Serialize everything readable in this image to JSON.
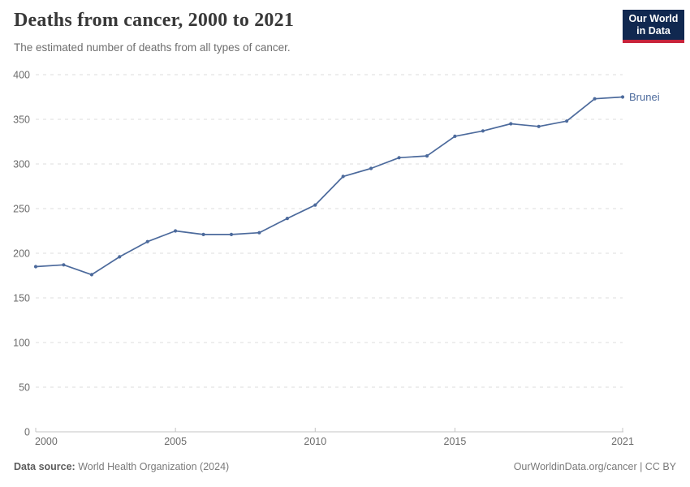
{
  "header": {
    "title": "Deaths from cancer, 2000 to 2021",
    "subtitle": "The estimated number of deaths from all types of cancer.",
    "logo": {
      "line1": "Our World",
      "line2": "in Data",
      "bg_color": "#102850",
      "accent_color": "#C8233B"
    }
  },
  "chart_data": {
    "type": "line",
    "title": "Deaths from cancer, 2000 to 2021",
    "subtitle": "The estimated number of deaths from all types of cancer.",
    "x": [
      2000,
      2001,
      2002,
      2003,
      2004,
      2005,
      2006,
      2007,
      2008,
      2009,
      2010,
      2011,
      2012,
      2013,
      2014,
      2015,
      2016,
      2017,
      2018,
      2019,
      2020,
      2021
    ],
    "series": [
      {
        "name": "Brunei",
        "color": "#4C6A9C",
        "values": [
          185,
          187,
          176,
          196,
          213,
          225,
          221,
          221,
          223,
          239,
          254,
          286,
          295,
          307,
          309,
          331,
          337,
          345,
          342,
          348,
          373,
          375
        ]
      }
    ],
    "xlabel": "",
    "ylabel": "",
    "ylim": [
      0,
      400
    ],
    "xlim": [
      2000,
      2021
    ],
    "yticks": [
      0,
      50,
      100,
      150,
      200,
      250,
      300,
      350,
      400
    ],
    "xticks": [
      2000,
      2005,
      2010,
      2015,
      2021
    ],
    "grid": "horizontal-dashed",
    "legend_position": "end-of-line-label",
    "colors": {
      "gridline": "#dcdcdc",
      "axis": "#c4c4c4",
      "tick_text": "#6b6b6b"
    }
  },
  "footer": {
    "source_label": "Data source:",
    "source_value": "World Health Organization (2024)",
    "link": "OurWorldinData.org/cancer | CC BY"
  }
}
